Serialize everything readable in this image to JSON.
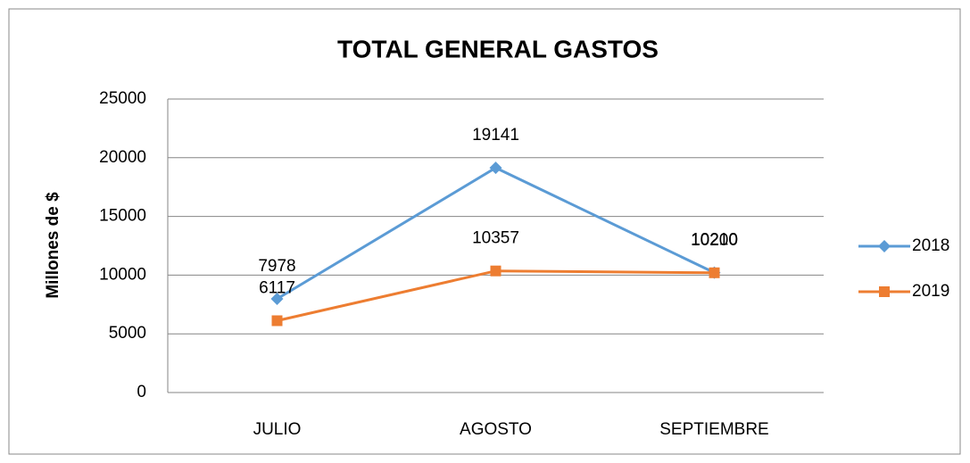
{
  "chart_data": {
    "type": "line",
    "title": "TOTAL GENERAL GASTOS",
    "y_label": "Millones de $",
    "categories": [
      "JULIO",
      "AGOSTO",
      "SEPTIEMBRE"
    ],
    "series": [
      {
        "name": "2018",
        "color": "#5b9bd5",
        "marker": "diamond",
        "values": [
          7978,
          19141,
          10210
        ]
      },
      {
        "name": "2019",
        "color": "#ed7d31",
        "marker": "square",
        "values": [
          6117,
          10357,
          10200
        ]
      }
    ],
    "ylim": [
      0,
      25000
    ],
    "yticks": [
      0,
      5000,
      10000,
      15000,
      20000,
      25000
    ],
    "grid": true,
    "legend": "right"
  }
}
